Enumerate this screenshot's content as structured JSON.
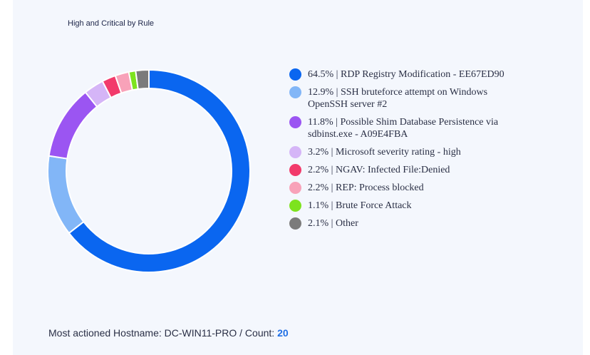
{
  "chart_data": {
    "type": "pie",
    "title": "High and Critical by Rule",
    "donut": true,
    "legend_position": "right",
    "slices": [
      {
        "label": "RDP Registry Modification - EE67ED90",
        "percent_label": "64.5%",
        "value": 64.5,
        "color": "#0a66f0"
      },
      {
        "label": "SSH bruteforce attempt on Windows OpenSSH server #2",
        "percent_label": "12.9%",
        "value": 12.9,
        "color": "#82b6f7"
      },
      {
        "label": "Possible Shim Database Persistence via sdbinst.exe - A09E4FBA",
        "percent_label": "11.8%",
        "value": 11.8,
        "color": "#9b55f2"
      },
      {
        "label": "Microsoft severity rating - high",
        "percent_label": "3.2%",
        "value": 3.2,
        "color": "#d5b5f7"
      },
      {
        "label": "NGAV: Infected File:Denied",
        "percent_label": "2.2%",
        "value": 2.2,
        "color": "#f23a6b"
      },
      {
        "label": "REP: Process blocked",
        "percent_label": "2.2%",
        "value": 2.2,
        "color": "#f8a2b9"
      },
      {
        "label": "Brute Force Attack",
        "percent_label": "1.1%",
        "value": 1.1,
        "color": "#7de31e"
      },
      {
        "label": "Other",
        "percent_label": "2.1%",
        "value": 2.1,
        "color": "#7b7b7b"
      }
    ]
  },
  "footer": {
    "label": "Most actioned Hostname: DC-WIN11-PRO / Count: ",
    "count": "20"
  }
}
